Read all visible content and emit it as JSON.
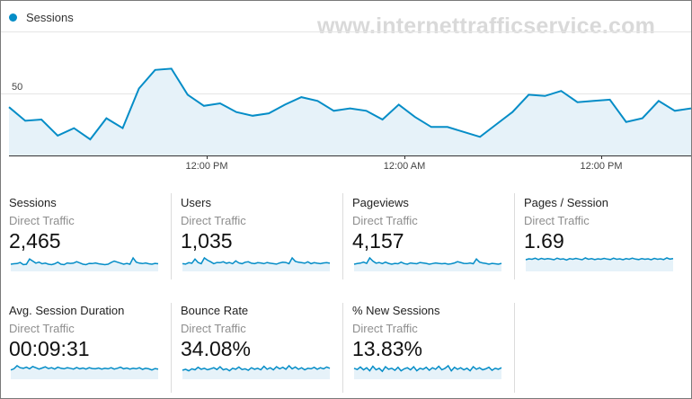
{
  "watermark": "www.internettrafficservice.com",
  "chart_data": {
    "type": "area",
    "series": [
      {
        "name": "Sessions",
        "values": [
          39,
          28,
          29,
          16,
          22,
          13,
          30,
          22,
          54,
          69,
          70,
          49,
          40,
          42,
          35,
          32,
          34,
          41,
          47,
          44,
          36,
          38,
          36,
          29,
          41,
          31,
          23,
          23,
          19,
          15,
          25,
          35,
          49,
          48,
          52,
          43,
          44,
          45,
          27,
          30,
          44,
          36,
          38
        ]
      }
    ],
    "ylim": [
      0,
      100
    ],
    "yticks": [
      "100",
      "50"
    ],
    "xticks": [
      "12:00 PM",
      "12:00 AM",
      "12:00 PM"
    ],
    "grid": true,
    "legend": "top-left",
    "colors": {
      "line": "#058dc7",
      "fill": "#e6f2f9"
    }
  },
  "metrics": [
    {
      "title": "Sessions",
      "subtitle": "Direct Traffic",
      "value": "2,465",
      "spark": [
        30,
        32,
        33,
        38,
        28,
        30,
        55,
        45,
        35,
        40,
        32,
        35,
        30,
        28,
        32,
        40,
        30,
        28,
        36,
        34,
        35,
        42,
        36,
        30,
        28,
        34,
        33,
        36,
        32,
        30,
        28,
        30,
        38,
        45,
        40,
        35,
        30,
        34,
        30,
        60,
        40,
        35,
        33,
        36,
        32,
        30,
        34,
        32
      ]
    },
    {
      "title": "Users",
      "subtitle": "Direct Traffic",
      "value": "1,035",
      "spark": [
        30,
        28,
        34,
        32,
        50,
        35,
        30,
        55,
        45,
        38,
        30,
        35,
        34,
        38,
        32,
        35,
        30,
        42,
        33,
        30,
        36,
        38,
        32,
        30,
        34,
        33,
        30,
        35,
        32,
        30,
        28,
        33,
        36,
        35,
        30,
        55,
        40,
        36,
        34,
        32,
        38,
        30,
        34,
        32,
        30,
        33,
        34,
        32
      ]
    },
    {
      "title": "Pageviews",
      "subtitle": "Direct Traffic",
      "value": "4,157",
      "spark": [
        30,
        33,
        35,
        40,
        34,
        60,
        45,
        35,
        38,
        33,
        40,
        34,
        30,
        34,
        32,
        40,
        33,
        30,
        36,
        34,
        32,
        38,
        36,
        34,
        30,
        33,
        36,
        34,
        32,
        34,
        30,
        32,
        36,
        42,
        38,
        34,
        33,
        36,
        32,
        55,
        40,
        36,
        34,
        30,
        34,
        32,
        30,
        34
      ]
    },
    {
      "title": "Pages / Session",
      "subtitle": "Direct Traffic",
      "value": "1.69",
      "spark": [
        48,
        52,
        50,
        55,
        49,
        54,
        50,
        53,
        51,
        48,
        55,
        50,
        52,
        47,
        53,
        50,
        54,
        51,
        48,
        56,
        50,
        53,
        49,
        52,
        50,
        54,
        51,
        49,
        55,
        50,
        52,
        48,
        53,
        50,
        55,
        51,
        49,
        53,
        50,
        52,
        48,
        54,
        50,
        52,
        49,
        56,
        51,
        53
      ]
    },
    {
      "title": "Avg. Session Duration",
      "subtitle": "Direct Traffic",
      "value": "00:09:31",
      "spark": [
        30,
        34,
        45,
        38,
        36,
        40,
        34,
        42,
        38,
        33,
        37,
        41,
        35,
        38,
        33,
        40,
        36,
        34,
        38,
        36,
        33,
        39,
        34,
        37,
        33,
        38,
        35,
        34,
        37,
        33,
        36,
        34,
        38,
        33,
        36,
        40,
        34,
        37,
        33,
        36,
        34,
        38,
        32,
        36,
        34,
        30,
        35,
        33
      ]
    },
    {
      "title": "Bounce Rate",
      "subtitle": "Direct Traffic",
      "value": "34.08%",
      "spark": [
        32,
        36,
        30,
        38,
        34,
        44,
        36,
        40,
        34,
        38,
        42,
        35,
        46,
        34,
        38,
        30,
        40,
        36,
        45,
        35,
        38,
        32,
        42,
        36,
        40,
        34,
        48,
        36,
        42,
        34,
        46,
        38,
        44,
        36,
        50,
        38,
        45,
        36,
        42,
        34,
        40,
        38,
        44,
        36,
        42,
        38,
        45,
        40
      ]
    },
    {
      "title": "% New Sessions",
      "subtitle": "Direct Traffic",
      "value": "13.83%",
      "spark": [
        40,
        35,
        45,
        34,
        42,
        30,
        48,
        34,
        40,
        28,
        46,
        36,
        40,
        32,
        44,
        30,
        38,
        42,
        34,
        46,
        30,
        40,
        36,
        44,
        32,
        42,
        36,
        48,
        34,
        40,
        50,
        30,
        44,
        36,
        42,
        34,
        40,
        30,
        46,
        36,
        42,
        34,
        38,
        44,
        32,
        40,
        36,
        42
      ]
    }
  ]
}
